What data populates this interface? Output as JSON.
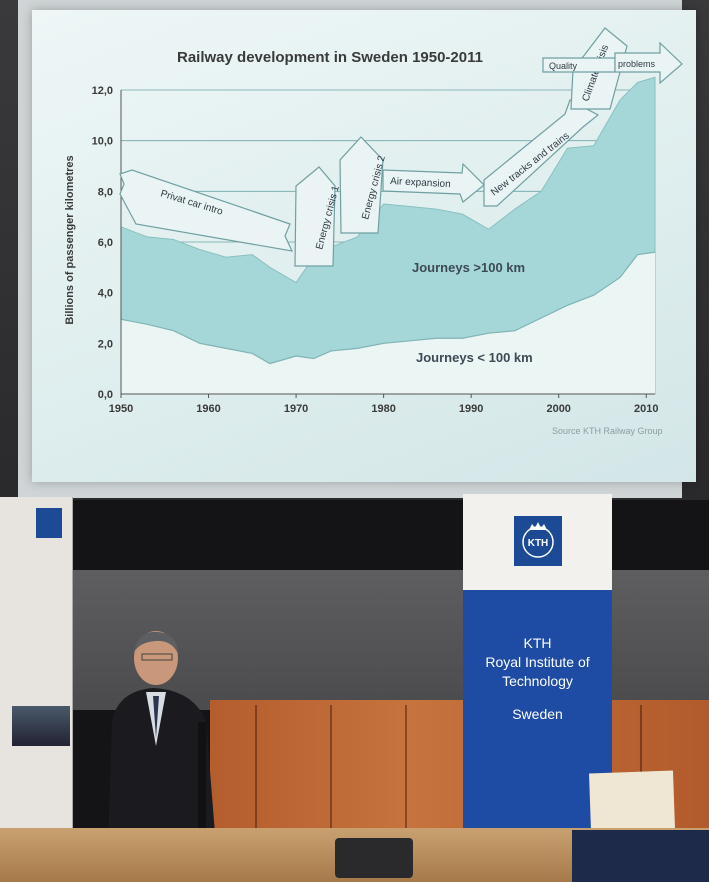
{
  "chart_data": {
    "type": "area",
    "title": "Railway development in Sweden 1950-2011",
    "ylabel": "Billions of passenger kilometres",
    "xlabel": "",
    "xlim": [
      1950,
      2011
    ],
    "ylim": [
      0,
      12
    ],
    "x_ticks": [
      "1950",
      "1960",
      "1970",
      "1980",
      "1990",
      "2000",
      "2010"
    ],
    "y_ticks": [
      "0,0",
      "2,0",
      "4,0",
      "6,0",
      "8,0",
      "10,0",
      "12,0"
    ],
    "grid": true,
    "series": [
      {
        "name": "Journeys < 100 km",
        "x": [
          1950,
          1953,
          1956,
          1959,
          1962,
          1965,
          1967,
          1970,
          1972,
          1974,
          1977,
          1980,
          1983,
          1986,
          1989,
          1992,
          1995,
          1998,
          2001,
          2004,
          2007,
          2009,
          2011
        ],
        "values": [
          2.95,
          2.75,
          2.5,
          2.0,
          1.8,
          1.6,
          1.2,
          1.5,
          1.4,
          1.7,
          1.8,
          2.0,
          2.1,
          2.2,
          2.2,
          2.4,
          2.5,
          3.0,
          3.5,
          3.9,
          4.6,
          5.5,
          5.6
        ]
      },
      {
        "name": "Journeys >100 km",
        "x": [
          1950,
          1953,
          1956,
          1959,
          1962,
          1965,
          1967,
          1970,
          1972,
          1974,
          1977,
          1980,
          1983,
          1986,
          1989,
          1992,
          1995,
          1998,
          2001,
          2004,
          2007,
          2009,
          2011
        ],
        "values": [
          6.6,
          6.2,
          6.1,
          5.7,
          5.4,
          5.5,
          5.0,
          4.4,
          5.4,
          5.8,
          6.2,
          7.5,
          7.4,
          7.3,
          7.1,
          6.5,
          7.3,
          8.0,
          9.7,
          9.8,
          11.6,
          12.3,
          12.5
        ]
      }
    ],
    "annotations": [
      "Privat car intro",
      "Energy crisis 1",
      "Energy crisis 2",
      "Air expansion",
      "New tracks and trains",
      "Climate crisis",
      "Quality",
      "problems"
    ],
    "source": "Source KTH Railway Group"
  },
  "banner": {
    "logo_text": "KTH",
    "line1": "KTH",
    "line2": "Royal Institute of",
    "line3": "Technology",
    "line4": "Sweden"
  },
  "colors": {
    "area_fill": "#a6d7d8",
    "area_stroke": "#8abfc0",
    "banner_blue": "#1e4ca5",
    "arrow_fill": "#eaf4f4"
  }
}
